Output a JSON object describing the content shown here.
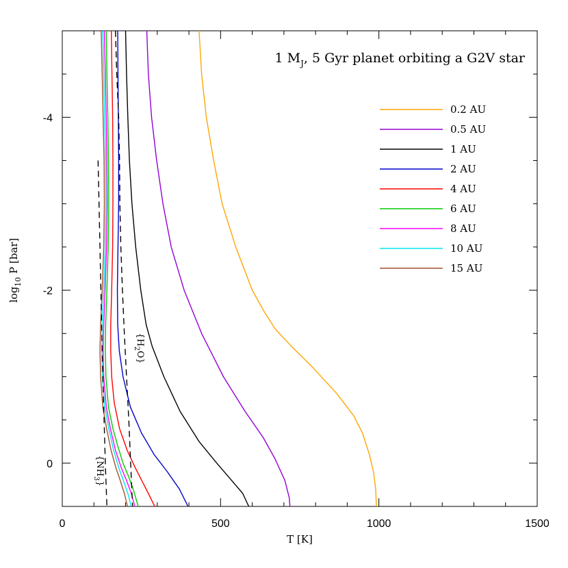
{
  "chart_data": {
    "type": "line",
    "title_parts": [
      "1 M",
      "J",
      ", 5 Gyr planet orbiting a G2V star"
    ],
    "xlabel": "T [K]",
    "ylabel_parts": [
      "log",
      "10",
      " P [bar]"
    ],
    "xlim": [
      0,
      1500
    ],
    "ylim": [
      0.5,
      -5
    ],
    "x_ticks": [
      0,
      500,
      1000,
      1500
    ],
    "y_ticks": [
      -4,
      -2,
      0
    ],
    "x_tick_labels": [
      "0",
      "500",
      "1000",
      "1500"
    ],
    "y_tick_labels": [
      "-4",
      "-2",
      "0"
    ],
    "legend_position": "upper-right",
    "series": [
      {
        "name": "0.2 AU",
        "color": "#FFA500",
        "points": [
          [
            432,
            -5
          ],
          [
            440,
            -4.5
          ],
          [
            455,
            -4
          ],
          [
            478,
            -3.5
          ],
          [
            505,
            -3
          ],
          [
            548,
            -2.5
          ],
          [
            600,
            -2
          ],
          [
            638,
            -1.75
          ],
          [
            673,
            -1.55
          ],
          [
            724,
            -1.35
          ],
          [
            793,
            -1.1
          ],
          [
            868,
            -0.8
          ],
          [
            920,
            -0.55
          ],
          [
            948,
            -0.35
          ],
          [
            970,
            -0.1
          ],
          [
            983,
            0.1
          ],
          [
            990,
            0.3
          ],
          [
            992,
            0.5
          ]
        ]
      },
      {
        "name": "0.5 AU",
        "color": "#9400D3",
        "points": [
          [
            267,
            -5
          ],
          [
            272,
            -4.5
          ],
          [
            282,
            -4
          ],
          [
            298,
            -3.5
          ],
          [
            318,
            -3
          ],
          [
            344,
            -2.5
          ],
          [
            385,
            -2
          ],
          [
            440,
            -1.5
          ],
          [
            509,
            -1
          ],
          [
            577,
            -0.6
          ],
          [
            634,
            -0.3
          ],
          [
            672,
            -0.05
          ],
          [
            703,
            0.2
          ],
          [
            717,
            0.4
          ],
          [
            719,
            0.5
          ]
        ]
      },
      {
        "name": "1 AU",
        "color": "#000000",
        "points": [
          [
            200,
            -5
          ],
          [
            203,
            -4.5
          ],
          [
            207,
            -4
          ],
          [
            212,
            -3.5
          ],
          [
            220,
            -3
          ],
          [
            232,
            -2.5
          ],
          [
            248,
            -2
          ],
          [
            265,
            -1.6
          ],
          [
            284,
            -1.35
          ],
          [
            321,
            -1
          ],
          [
            372,
            -0.6
          ],
          [
            432,
            -0.25
          ],
          [
            488,
            0
          ],
          [
            535,
            0.2
          ],
          [
            570,
            0.35
          ],
          [
            589,
            0.5
          ]
        ]
      },
      {
        "name": "2 AU",
        "color": "#0000CD",
        "points": [
          [
            175,
            -5
          ],
          [
            176,
            -4.5
          ],
          [
            177,
            -4
          ],
          [
            178,
            -3.5
          ],
          [
            178,
            -3
          ],
          [
            176,
            -2.5
          ],
          [
            174,
            -2
          ],
          [
            175,
            -1.6
          ],
          [
            180,
            -1.3
          ],
          [
            192,
            -1
          ],
          [
            215,
            -0.65
          ],
          [
            250,
            -0.35
          ],
          [
            290,
            -0.1
          ],
          [
            332,
            0.1
          ],
          [
            370,
            0.3
          ],
          [
            397,
            0.5
          ]
        ]
      },
      {
        "name": "4 AU",
        "color": "#FF0000",
        "points": [
          [
            155,
            -5
          ],
          [
            157,
            -4.5
          ],
          [
            159,
            -4
          ],
          [
            160,
            -3.5
          ],
          [
            160,
            -3
          ],
          [
            159,
            -2.5
          ],
          [
            156,
            -2
          ],
          [
            153,
            -1.6
          ],
          [
            153,
            -1.3
          ],
          [
            156,
            -1
          ],
          [
            164,
            -0.7
          ],
          [
            181,
            -0.4
          ],
          [
            205,
            -0.15
          ],
          [
            230,
            0.05
          ],
          [
            251,
            0.2
          ],
          [
            272,
            0.35
          ],
          [
            292,
            0.5
          ]
        ]
      },
      {
        "name": "6 AU",
        "color": "#00CC00",
        "points": [
          [
            139,
            -5
          ],
          [
            141,
            -4.5
          ],
          [
            144,
            -4
          ],
          [
            146,
            -3.5
          ],
          [
            147,
            -3
          ],
          [
            145,
            -2.5
          ],
          [
            141,
            -2
          ],
          [
            137,
            -1.6
          ],
          [
            136,
            -1.3
          ],
          [
            138,
            -1
          ],
          [
            146,
            -0.65
          ],
          [
            160,
            -0.4
          ],
          [
            175,
            -0.2
          ],
          [
            192,
            0
          ],
          [
            209,
            0.15
          ],
          [
            224,
            0.3
          ],
          [
            240,
            0.5
          ]
        ]
      },
      {
        "name": "8 AU",
        "color": "#FF00FF",
        "points": [
          [
            133,
            -5
          ],
          [
            136,
            -4.5
          ],
          [
            139,
            -4
          ],
          [
            141,
            -3.5
          ],
          [
            142,
            -3
          ],
          [
            140,
            -2.5
          ],
          [
            135,
            -2
          ],
          [
            131,
            -1.6
          ],
          [
            129,
            -1.3
          ],
          [
            131,
            -1
          ],
          [
            139,
            -0.65
          ],
          [
            152,
            -0.4
          ],
          [
            168,
            -0.15
          ],
          [
            186,
            0.05
          ],
          [
            203,
            0.2
          ],
          [
            218,
            0.35
          ],
          [
            229,
            0.5
          ]
        ]
      },
      {
        "name": "10 AU",
        "color": "#00E5EE",
        "points": [
          [
            128,
            -5
          ],
          [
            131,
            -4.5
          ],
          [
            134,
            -4
          ],
          [
            137,
            -3.5
          ],
          [
            138,
            -3
          ],
          [
            136,
            -2.5
          ],
          [
            131,
            -2
          ],
          [
            126,
            -1.6
          ],
          [
            125,
            -1.3
          ],
          [
            127,
            -1
          ],
          [
            134,
            -0.65
          ],
          [
            147,
            -0.4
          ],
          [
            162,
            -0.15
          ],
          [
            178,
            0.05
          ],
          [
            193,
            0.2
          ],
          [
            207,
            0.35
          ],
          [
            218,
            0.5
          ]
        ]
      },
      {
        "name": "15 AU",
        "color": "#A0522D",
        "points": [
          [
            123,
            -5
          ],
          [
            126,
            -4.5
          ],
          [
            129,
            -4
          ],
          [
            132,
            -3.5
          ],
          [
            133,
            -3
          ],
          [
            131,
            -2.5
          ],
          [
            126,
            -2
          ],
          [
            121,
            -1.6
          ],
          [
            119,
            -1.3
          ],
          [
            121,
            -1
          ],
          [
            128,
            -0.65
          ],
          [
            140,
            -0.4
          ],
          [
            154,
            -0.15
          ],
          [
            169,
            0.05
          ],
          [
            183,
            0.2
          ],
          [
            196,
            0.35
          ],
          [
            206,
            0.5
          ]
        ]
      }
    ],
    "condensation_curves": [
      {
        "label_parts": [
          "{H",
          "2",
          "O}"
        ],
        "points": [
          [
            168,
            -5
          ],
          [
            172,
            -4.5
          ],
          [
            178,
            -4
          ],
          [
            181,
            -3.5
          ],
          [
            182,
            -3
          ],
          [
            185,
            -2.5
          ],
          [
            190,
            -2
          ],
          [
            196,
            -1.5
          ],
          [
            203,
            -1
          ],
          [
            210,
            -0.5
          ],
          [
            216,
            0
          ],
          [
            222,
            0.5
          ]
        ]
      },
      {
        "label_parts": [
          "{NH",
          "3",
          "}"
        ],
        "points": [
          [
            113,
            -3.5
          ],
          [
            116,
            -3
          ],
          [
            119,
            -2.5
          ],
          [
            122,
            -2
          ],
          [
            125,
            -1.5
          ],
          [
            128,
            -1
          ],
          [
            132,
            -0.5
          ],
          [
            136,
            0
          ],
          [
            141,
            0.5
          ]
        ]
      }
    ]
  }
}
